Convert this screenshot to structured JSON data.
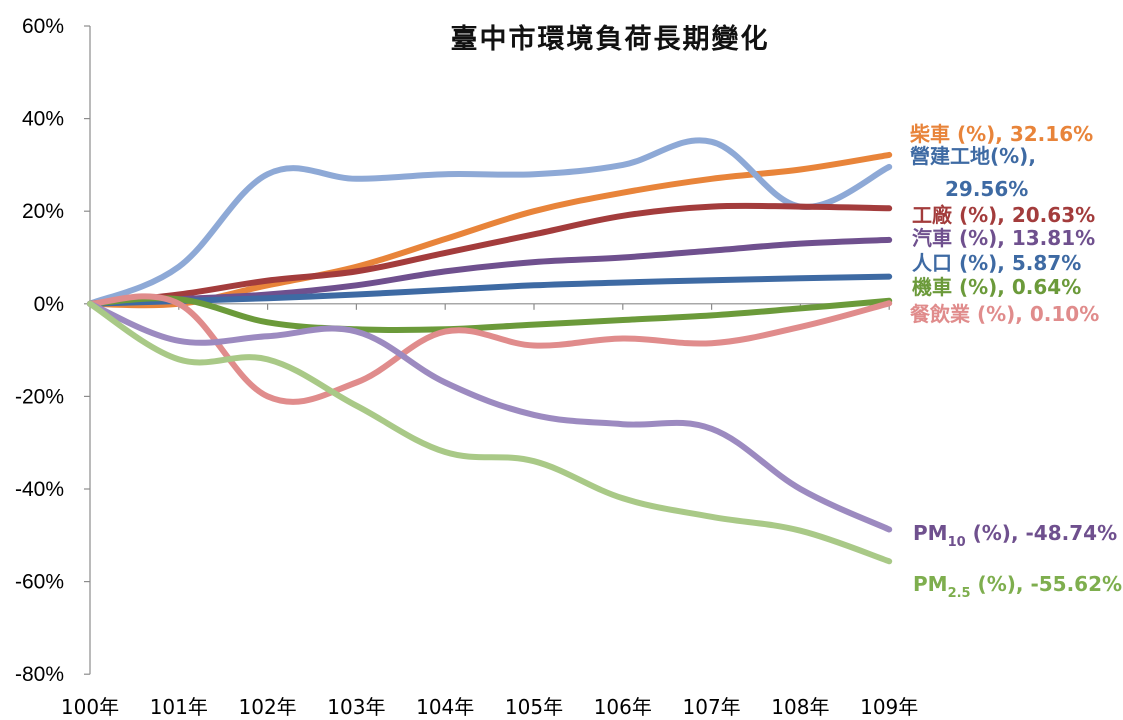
{
  "chart_data": {
    "type": "line",
    "title": "臺中市環境負荷長期變化",
    "categories": [
      "100年",
      "101年",
      "102年",
      "103年",
      "104年",
      "105年",
      "106年",
      "107年",
      "108年",
      "109年"
    ],
    "y_ticks": [
      "60%",
      "40%",
      "20%",
      "0%",
      "-20%",
      "-40%",
      "-60%",
      "-80%"
    ],
    "ylim": [
      -80,
      60
    ],
    "grid": false,
    "series": [
      {
        "name": "柴車 (%), 32.16%",
        "label_parts": [
          "柴車 (%), ",
          "32.16%"
        ],
        "color": "#E8843A",
        "values": [
          0,
          0,
          4,
          8,
          14,
          20,
          24,
          27,
          29,
          32.16
        ]
      },
      {
        "name": "營建工地(%), 29.56%",
        "label_parts": [
          "營建工地(%),",
          "29.56%"
        ],
        "color": "#8EA9D6",
        "values": [
          0,
          8,
          28,
          27,
          28,
          28,
          30,
          35,
          21,
          29.56
        ]
      },
      {
        "name": "工廠 (%), 20.63%",
        "label_parts": [
          "工廠 (%), ",
          "20.63%"
        ],
        "color": "#A33C3C",
        "values": [
          0,
          2,
          5,
          7,
          11,
          15,
          19,
          21,
          21,
          20.63
        ]
      },
      {
        "name": "汽車 (%), 13.81%",
        "label_parts": [
          "汽車 (%), ",
          "13.81%"
        ],
        "color": "#6F508E",
        "values": [
          0,
          1,
          2,
          4,
          7,
          9,
          10,
          11.5,
          13,
          13.81
        ]
      },
      {
        "name": "人口 (%), 5.87%",
        "label_parts": [
          "人口 (%), ",
          "5.87%"
        ],
        "color": "#3E6AA3",
        "values": [
          0,
          0.6,
          1.2,
          2,
          3,
          4,
          4.6,
          5.1,
          5.5,
          5.87
        ]
      },
      {
        "name": "機車 (%), 0.64%",
        "label_parts": [
          "機車 (%), ",
          "0.64%"
        ],
        "color": "#6B9A3A",
        "values": [
          0,
          1,
          -4,
          -5.5,
          -5.5,
          -4.5,
          -3.5,
          -2.5,
          -1,
          0.64
        ]
      },
      {
        "name": "餐飲業 (%), 0.10%",
        "label_parts": [
          "餐飲業 (%), ",
          "0.10%"
        ],
        "color": "#E08C8C",
        "values": [
          0,
          0,
          -20,
          -17,
          -6,
          -9,
          -7.5,
          -8.5,
          -5,
          0.1
        ]
      },
      {
        "name": "PM10 (%), -48.74%",
        "label_parts": [
          "PM",
          "10",
          " (%), -48.74%"
        ],
        "color": "#9C8AC0",
        "values": [
          0,
          -8,
          -7,
          -6,
          -17,
          -24,
          -26,
          -27,
          -40,
          -48.74
        ]
      },
      {
        "name": "PM2.5 (%), -55.62%",
        "label_parts": [
          "PM",
          "2.5",
          " (%), -55.62%"
        ],
        "color": "#A9C987",
        "values": [
          0,
          -12,
          -12,
          -22,
          -32,
          -34,
          -42,
          -46,
          -49,
          -55.62
        ]
      }
    ]
  }
}
